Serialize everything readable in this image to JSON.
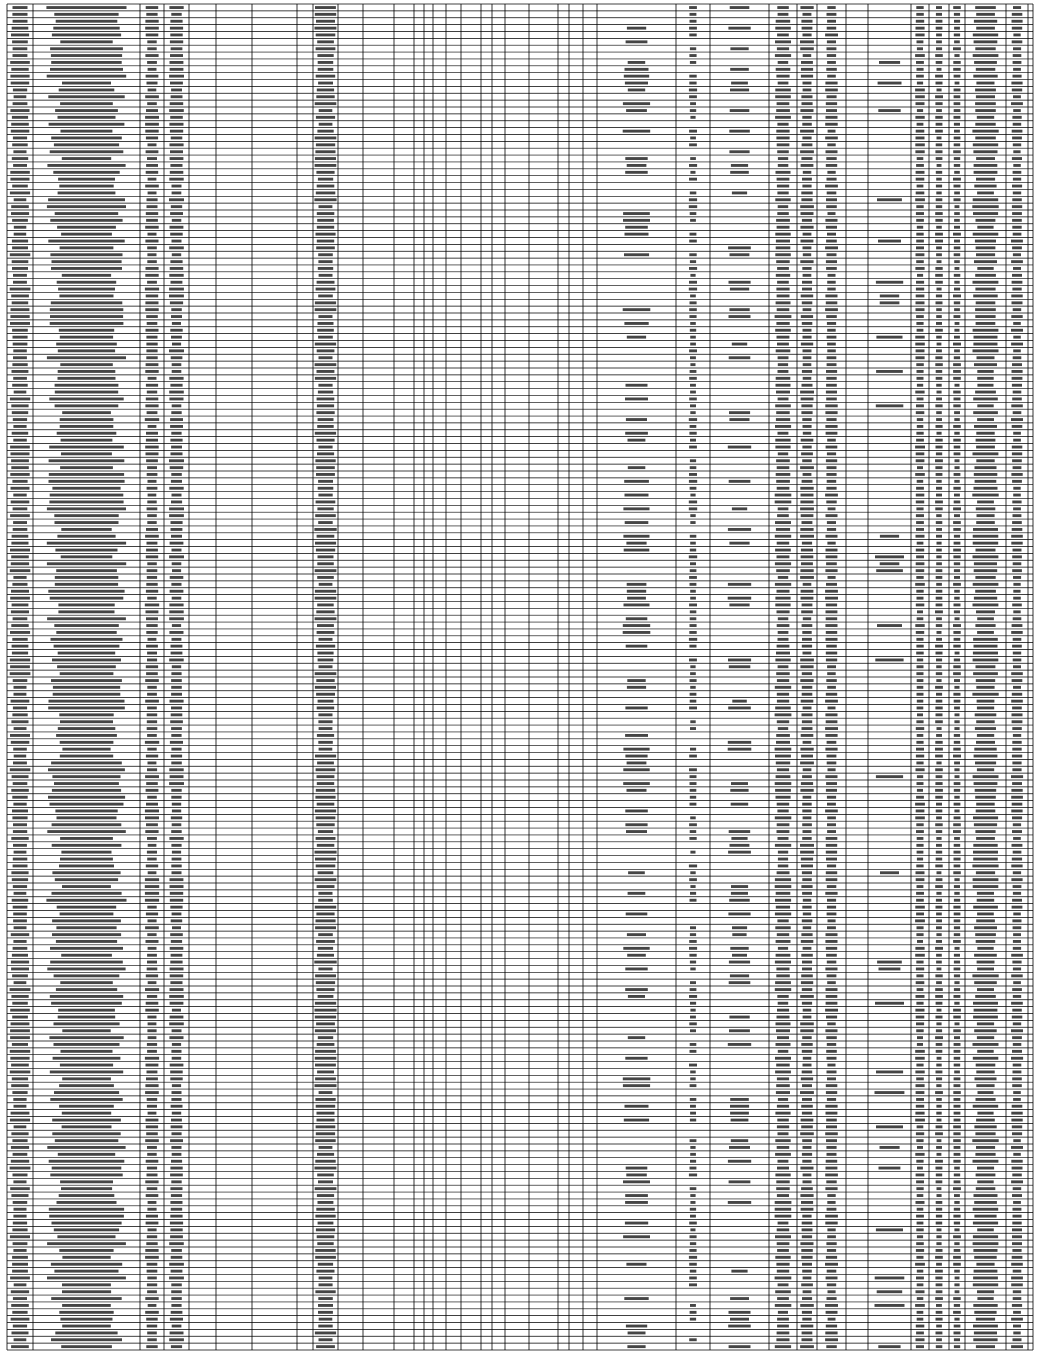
{
  "document": {
    "type": "spreadsheet-printout",
    "text_legible": false,
    "column_count": 42,
    "row_count": 196,
    "grid_color": "#000000",
    "text_color": "#111111",
    "background_color": "#ffffff",
    "sparse_columns": {
      "col_14": 0.9,
      "col_16": 0.9,
      "col_18": 0.38,
      "col_19": 0.38,
      "col_21": 0.45,
      "col_22": 0.12,
      "col_30": 0.75,
      "col_31": 0.95,
      "col_34": 0.2
    }
  }
}
